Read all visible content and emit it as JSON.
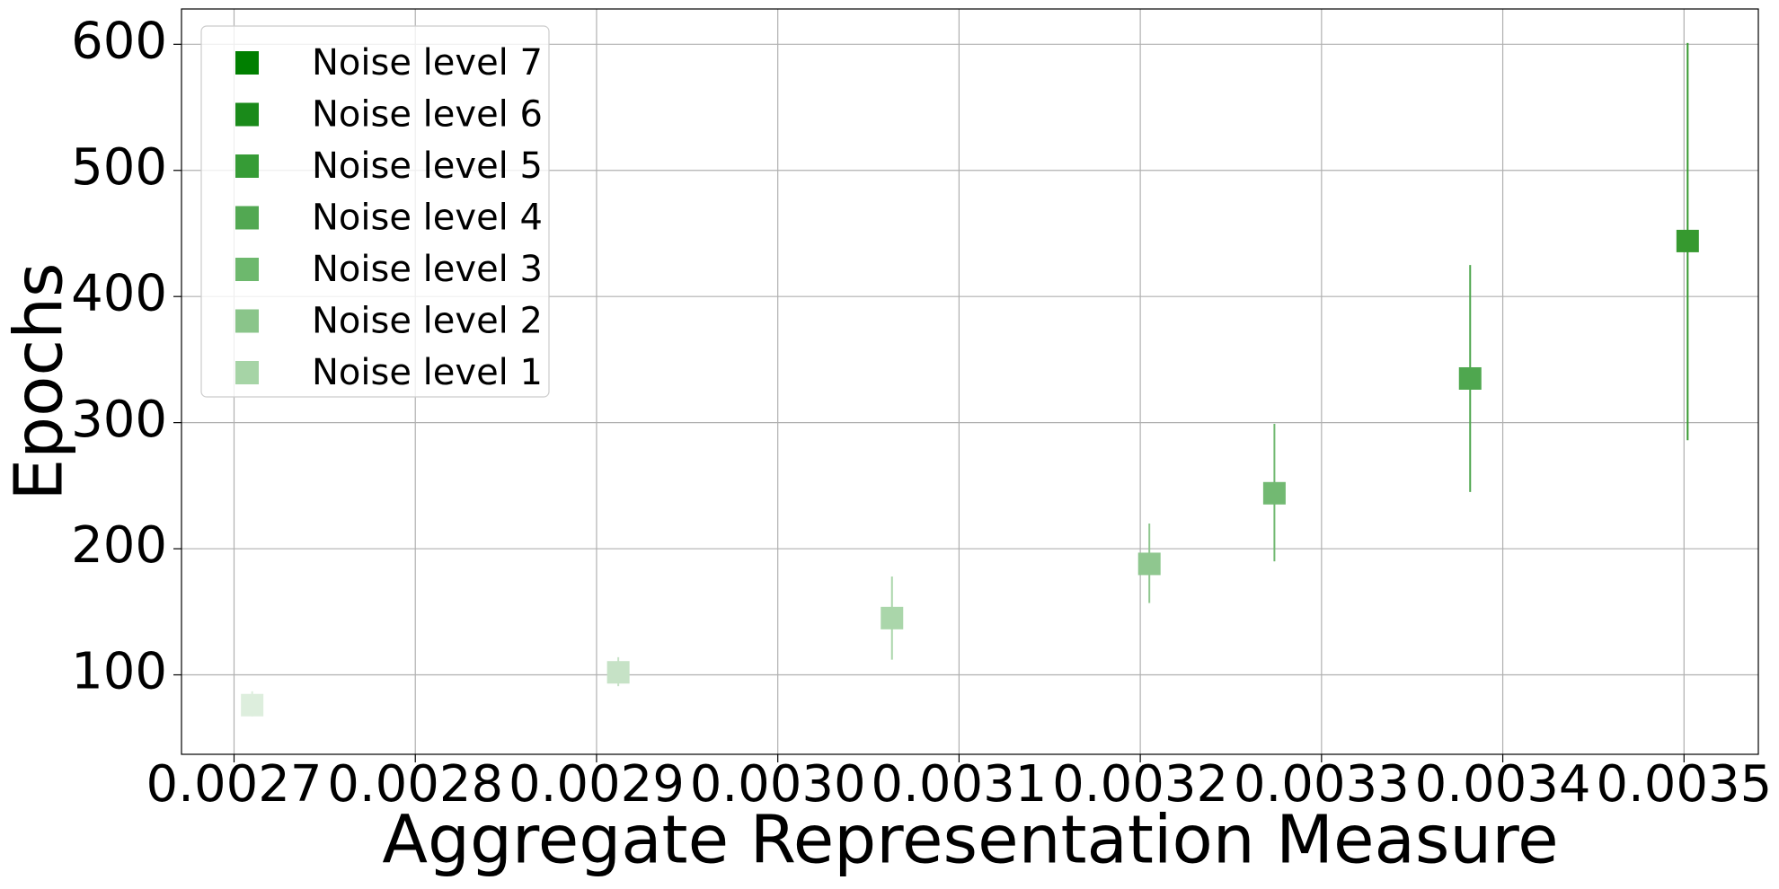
{
  "chart_data": {
    "type": "errorbar",
    "xlabel": "Aggregate Representation Measure",
    "ylabel": "Epochs",
    "xlim": [
      0.002671,
      0.003541
    ],
    "ylim": [
      37,
      628
    ],
    "xticks": [
      0.0027,
      0.0028,
      0.0029,
      {
        "value": 0.003,
        "label": "0.0030"
      },
      0.0031,
      0.0032,
      0.0033,
      0.0034,
      0.0035
    ],
    "yticks": [
      100,
      200,
      300,
      400,
      500,
      600
    ],
    "grid": true,
    "legend_position": "upper left",
    "legend": [
      {
        "name": "Noise level 7",
        "color": "#007f00"
      },
      {
        "name": "Noise level 6",
        "color": "#1a8a1a"
      },
      {
        "name": "Noise level 5",
        "color": "#369c36"
      },
      {
        "name": "Noise level 4",
        "color": "#52a852"
      },
      {
        "name": "Noise level 3",
        "color": "#6db86d"
      },
      {
        "name": "Noise level 2",
        "color": "#8ac58a"
      },
      {
        "name": "Noise level 1",
        "color": "#a6d4a6"
      }
    ],
    "series": [
      {
        "x": [
          0.00271,
          0.002912,
          0.003063,
          0.003205,
          0.003274,
          0.003382,
          0.003502
        ],
        "values": [
          76,
          102,
          145,
          188,
          244,
          335,
          444
        ],
        "yerr_low": [
          9,
          11,
          33,
          31,
          54,
          90,
          158
        ],
        "yerr_high": [
          11,
          12,
          33,
          32,
          55,
          90,
          157
        ],
        "colors": [
          "#ddeedd",
          "#c6e2c6",
          "#aad6aa",
          "#8fc78f",
          "#72b972",
          "#4fa74f",
          "#36992f"
        ]
      }
    ]
  }
}
